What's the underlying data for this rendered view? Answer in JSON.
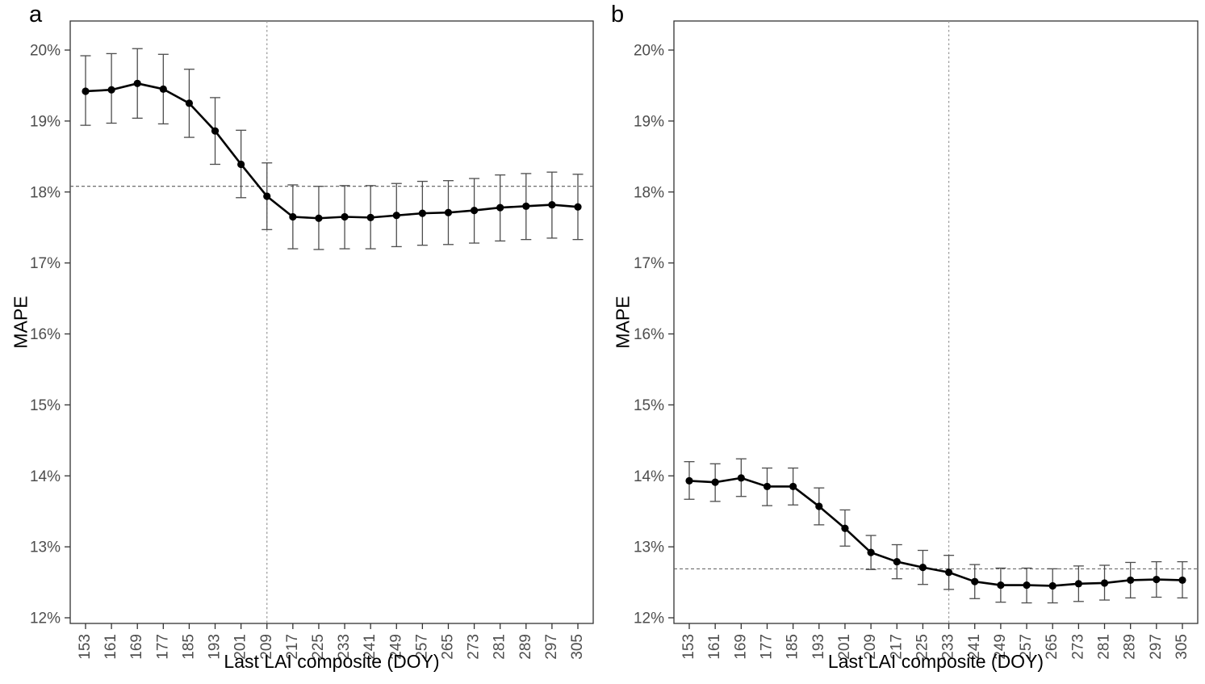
{
  "chart_data": [
    {
      "type": "line",
      "panel_label": "a",
      "xlabel": "Last LAI composite (DOY)",
      "ylabel": "MAPE",
      "x": [
        153,
        161,
        169,
        177,
        185,
        193,
        201,
        209,
        217,
        225,
        233,
        241,
        249,
        257,
        265,
        273,
        281,
        289,
        297,
        305
      ],
      "series": [
        {
          "name": "MAPE",
          "values": [
            19.42,
            19.44,
            19.53,
            19.45,
            19.25,
            18.86,
            18.39,
            17.94,
            17.65,
            17.63,
            17.65,
            17.64,
            17.67,
            17.7,
            17.71,
            17.74,
            17.78,
            17.8,
            17.82,
            17.79
          ],
          "error_lower": [
            18.94,
            18.97,
            19.04,
            18.96,
            18.77,
            18.39,
            17.92,
            17.47,
            17.2,
            17.19,
            17.2,
            17.2,
            17.23,
            17.25,
            17.26,
            17.28,
            17.31,
            17.33,
            17.35,
            17.33
          ],
          "error_upper": [
            19.92,
            19.95,
            20.02,
            19.94,
            19.73,
            19.33,
            18.87,
            18.41,
            18.1,
            18.08,
            18.09,
            18.09,
            18.12,
            18.15,
            18.16,
            18.19,
            18.24,
            18.26,
            18.28,
            18.25
          ]
        }
      ],
      "reference_lines": {
        "horizontal_y": 18.08,
        "vertical_x": 209
      },
      "ylim": [
        12,
        20
      ],
      "yticks": [
        12,
        13,
        14,
        15,
        16,
        17,
        18,
        19,
        20
      ],
      "y_tick_suffix": "%",
      "grid": false,
      "legend": "none",
      "colors": {
        "series": "#000000",
        "error_bar": "#4d4d4d",
        "reference_line": "#7f7f7f",
        "panel_border": "#333333",
        "tick_label": "#4d4d4d"
      }
    },
    {
      "type": "line",
      "panel_label": "b",
      "xlabel": "Last LAI composite (DOY)",
      "ylabel": "MAPE",
      "x": [
        153,
        161,
        169,
        177,
        185,
        193,
        201,
        209,
        217,
        225,
        233,
        241,
        249,
        257,
        265,
        273,
        281,
        289,
        297,
        305
      ],
      "series": [
        {
          "name": "MAPE",
          "values": [
            13.93,
            13.91,
            13.97,
            13.85,
            13.85,
            13.57,
            13.26,
            12.92,
            12.79,
            12.71,
            12.64,
            12.51,
            12.46,
            12.46,
            12.45,
            12.48,
            12.49,
            12.53,
            12.54,
            12.53
          ],
          "error_lower": [
            13.67,
            13.64,
            13.71,
            13.58,
            13.59,
            13.31,
            13.01,
            12.68,
            12.55,
            12.47,
            12.4,
            12.27,
            12.22,
            12.21,
            12.21,
            12.23,
            12.25,
            12.28,
            12.29,
            12.28
          ],
          "error_upper": [
            14.2,
            14.17,
            14.24,
            14.11,
            14.11,
            13.83,
            13.52,
            13.16,
            13.03,
            12.95,
            12.88,
            12.75,
            12.7,
            12.7,
            12.69,
            12.73,
            12.74,
            12.78,
            12.79,
            12.79
          ]
        }
      ],
      "reference_lines": {
        "horizontal_y": 12.69,
        "vertical_x": 233
      },
      "ylim": [
        12,
        20
      ],
      "yticks": [
        12,
        13,
        14,
        15,
        16,
        17,
        18,
        19,
        20
      ],
      "y_tick_suffix": "%",
      "grid": false,
      "legend": "none",
      "colors": {
        "series": "#000000",
        "error_bar": "#4d4d4d",
        "reference_line": "#7f7f7f",
        "panel_border": "#333333",
        "tick_label": "#4d4d4d"
      }
    }
  ]
}
